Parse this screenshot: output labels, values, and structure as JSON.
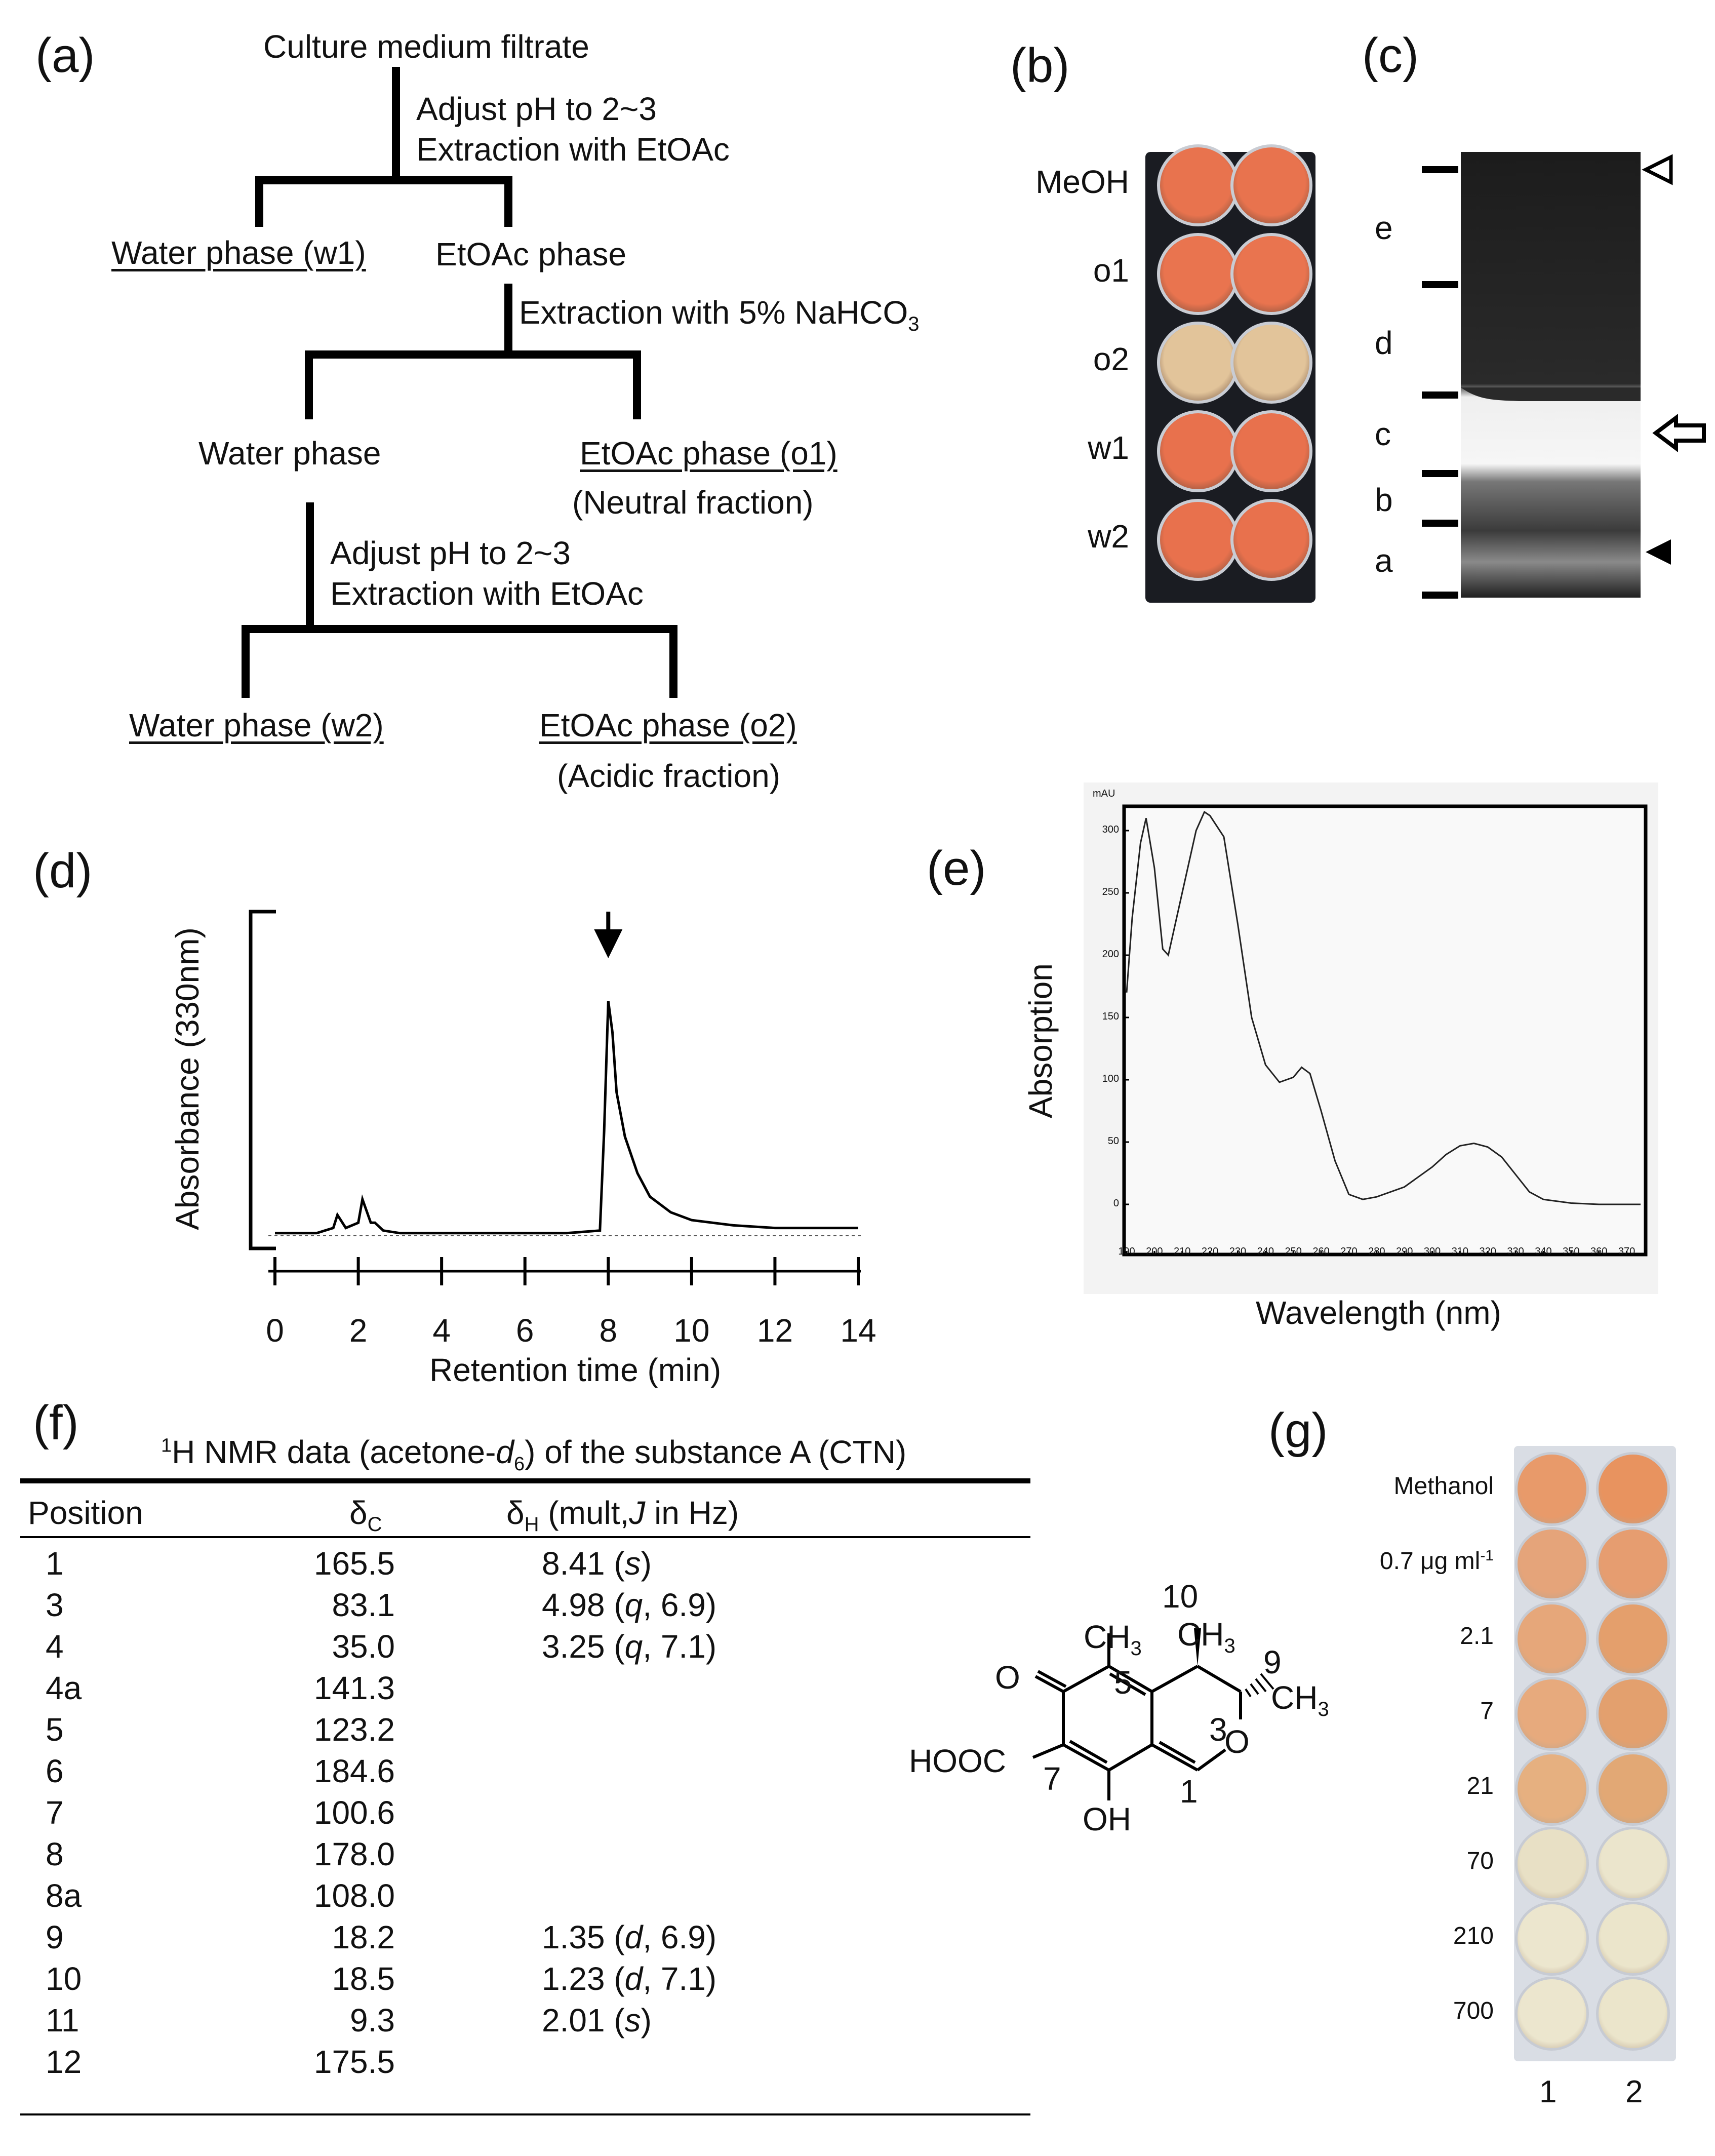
{
  "panel_labels": {
    "a": "(a)",
    "b": "(b)",
    "c": "(c)",
    "d": "(d)",
    "e": "(e)",
    "f": "(f)",
    "g": "(g)"
  },
  "flow": {
    "start": "Culture medium filtrate",
    "step1_line1": "Adjust pH to 2~3",
    "step1_line2": "Extraction with EtOAc",
    "water_w1": "Water phase (w1)",
    "etoac_phase": "EtOAc phase",
    "step2": "Extraction with 5% NaHCO",
    "step2_sub": "3",
    "water_phase": "Water phase",
    "etoac_o1": "EtOAc phase (o1)",
    "neutral": "(Neutral fraction)",
    "step3_line1": "Adjust pH to 2~3",
    "step3_line2": "Extraction with EtOAc",
    "water_w2": "Water phase (w2)",
    "etoac_o2": "EtOAc phase (o2)",
    "acidic": "(Acidic fraction)"
  },
  "plate_b": {
    "rows": [
      "MeOH",
      "o1",
      "o2",
      "w1",
      "w2"
    ],
    "colors": [
      "#e8734e",
      "#e9744f",
      "#e2c49a",
      "#e8714d",
      "#e8714d"
    ]
  },
  "gel_c": {
    "bands": [
      "e",
      "d",
      "c",
      "b",
      "a"
    ]
  },
  "chart_data": [
    {
      "type": "line",
      "panel": "d",
      "ylabel": "Absorbance (330nm)",
      "xlabel": "Retention time (min)",
      "xlim": [
        0,
        14
      ],
      "xticks": [
        "0",
        "2",
        "4",
        "6",
        "8",
        "10",
        "12",
        "14"
      ],
      "peak_marker_x": 8,
      "series": [
        {
          "x": [
            0,
            1.0,
            1.4,
            1.5,
            1.7,
            2.0,
            2.1,
            2.3,
            2.4,
            2.6,
            3,
            5,
            7,
            7.8,
            7.9,
            8.0,
            8.1,
            8.2,
            8.4,
            8.7,
            9,
            9.5,
            10,
            11,
            12,
            14
          ],
          "y": [
            0.01,
            0.01,
            0.03,
            0.08,
            0.03,
            0.05,
            0.14,
            0.05,
            0.05,
            0.02,
            0.01,
            0.01,
            0.01,
            0.02,
            0.4,
            0.9,
            0.78,
            0.55,
            0.38,
            0.24,
            0.15,
            0.09,
            0.06,
            0.04,
            0.03,
            0.03
          ]
        }
      ]
    },
    {
      "type": "line",
      "panel": "e",
      "ylabel": "Absorption",
      "xlabel": "Wavelength (nm)",
      "yunit": "mAU",
      "xlim": [
        190,
        375
      ],
      "ylim": [
        -20,
        330
      ],
      "xticks": [
        190,
        200,
        210,
        220,
        230,
        240,
        250,
        260,
        270,
        280,
        290,
        300,
        310,
        320,
        330,
        340,
        350,
        360,
        370
      ],
      "yticks": [
        0,
        50,
        100,
        150,
        200,
        250,
        300
      ],
      "series": [
        {
          "x": [
            190,
            192,
            195,
            197,
            200,
            203,
            205,
            210,
            215,
            218,
            220,
            225,
            230,
            235,
            240,
            245,
            250,
            253,
            256,
            260,
            265,
            270,
            275,
            280,
            290,
            300,
            305,
            310,
            315,
            320,
            325,
            330,
            335,
            340,
            350,
            360,
            370,
            375
          ],
          "y": [
            170,
            230,
            290,
            310,
            270,
            205,
            200,
            250,
            300,
            315,
            312,
            295,
            225,
            150,
            112,
            98,
            102,
            110,
            105,
            75,
            35,
            8,
            4,
            6,
            14,
            30,
            40,
            47,
            49,
            46,
            38,
            24,
            10,
            4,
            1,
            0,
            0,
            0
          ]
        }
      ]
    }
  ],
  "nmr": {
    "title_sup": "1",
    "title_main": "H NMR data (acetone-",
    "title_italic": "d",
    "title_sub": "6",
    "title_end": ") of the substance A (CTN)",
    "col_position": "Position",
    "col_c": "δC",
    "col_h": "δH (mult, J in Hz)",
    "rows": [
      {
        "pos": "1",
        "c": "165.5",
        "h": "8.41 (s)"
      },
      {
        "pos": "3",
        "c": "83.1",
        "h": "4.98 (q, 6.9)"
      },
      {
        "pos": "4",
        "c": "35.0",
        "h": "3.25 (q, 7.1)"
      },
      {
        "pos": "4a",
        "c": "141.3",
        "h": ""
      },
      {
        "pos": "5",
        "c": "123.2",
        "h": ""
      },
      {
        "pos": "6",
        "c": "184.6",
        "h": ""
      },
      {
        "pos": "7",
        "c": "100.6",
        "h": ""
      },
      {
        "pos": "8",
        "c": "178.0",
        "h": ""
      },
      {
        "pos": "8a",
        "c": "108.0",
        "h": ""
      },
      {
        "pos": "9",
        "c": "18.2",
        "h": "1.35 (d, 6.9)"
      },
      {
        "pos": "10",
        "c": "18.5",
        "h": "1.23 (d, 7.1)"
      },
      {
        "pos": "11",
        "c": "9.3",
        "h": "2.01 (s)"
      },
      {
        "pos": "12",
        "c": "175.5",
        "h": ""
      }
    ]
  },
  "structure": {
    "ch3_left": "CH3",
    "ch3_top": "CH3",
    "ch3_right": "CH3",
    "n10": "10",
    "n9": "9",
    "n5": "5",
    "n3": "3",
    "n7": "7",
    "n1": "1",
    "o_keto": "O",
    "o_ring": "O",
    "hooc": "HOOC",
    "oh": "OH"
  },
  "plate_g": {
    "rows": [
      "Methanol",
      "0.7 μg ml-1",
      "2.1",
      "7",
      "21",
      "70",
      "210",
      "700"
    ],
    "col_labels": [
      "1",
      "2"
    ],
    "colors": [
      [
        "#e89a6a",
        "#e8935f"
      ],
      [
        "#e5a47a",
        "#e69d70"
      ],
      [
        "#e6a77a",
        "#e49f6c"
      ],
      [
        "#e7aa7d",
        "#e3a06e"
      ],
      [
        "#e6b080",
        "#e2a875"
      ],
      [
        "#e8e0c5",
        "#ebe5cc"
      ],
      [
        "#ece6ce",
        "#ebe5cb"
      ],
      [
        "#ece6ce",
        "#ebe5cb"
      ]
    ]
  }
}
